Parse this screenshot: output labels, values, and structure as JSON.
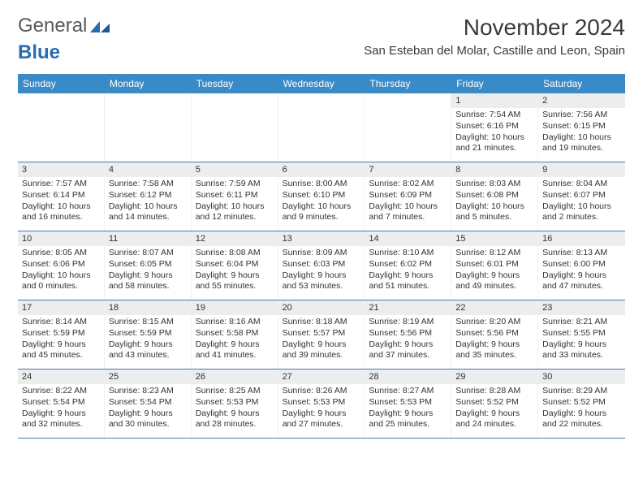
{
  "logo": {
    "text1": "General",
    "text2": "Blue"
  },
  "title": "November 2024",
  "location": "San Esteban del Molar, Castille and Leon, Spain",
  "colors": {
    "header_bg": "#3a8ac8",
    "daynum_bg": "#eceded",
    "rule": "#4a7aa8",
    "logo_gray": "#5a5a5a",
    "logo_blue": "#2b6cb0"
  },
  "weekdays": [
    "Sunday",
    "Monday",
    "Tuesday",
    "Wednesday",
    "Thursday",
    "Friday",
    "Saturday"
  ],
  "weeks": [
    [
      {
        "n": "",
        "sr": "",
        "ss": "",
        "dl": ""
      },
      {
        "n": "",
        "sr": "",
        "ss": "",
        "dl": ""
      },
      {
        "n": "",
        "sr": "",
        "ss": "",
        "dl": ""
      },
      {
        "n": "",
        "sr": "",
        "ss": "",
        "dl": ""
      },
      {
        "n": "",
        "sr": "",
        "ss": "",
        "dl": ""
      },
      {
        "n": "1",
        "sr": "Sunrise: 7:54 AM",
        "ss": "Sunset: 6:16 PM",
        "dl": "Daylight: 10 hours and 21 minutes."
      },
      {
        "n": "2",
        "sr": "Sunrise: 7:56 AM",
        "ss": "Sunset: 6:15 PM",
        "dl": "Daylight: 10 hours and 19 minutes."
      }
    ],
    [
      {
        "n": "3",
        "sr": "Sunrise: 7:57 AM",
        "ss": "Sunset: 6:14 PM",
        "dl": "Daylight: 10 hours and 16 minutes."
      },
      {
        "n": "4",
        "sr": "Sunrise: 7:58 AM",
        "ss": "Sunset: 6:12 PM",
        "dl": "Daylight: 10 hours and 14 minutes."
      },
      {
        "n": "5",
        "sr": "Sunrise: 7:59 AM",
        "ss": "Sunset: 6:11 PM",
        "dl": "Daylight: 10 hours and 12 minutes."
      },
      {
        "n": "6",
        "sr": "Sunrise: 8:00 AM",
        "ss": "Sunset: 6:10 PM",
        "dl": "Daylight: 10 hours and 9 minutes."
      },
      {
        "n": "7",
        "sr": "Sunrise: 8:02 AM",
        "ss": "Sunset: 6:09 PM",
        "dl": "Daylight: 10 hours and 7 minutes."
      },
      {
        "n": "8",
        "sr": "Sunrise: 8:03 AM",
        "ss": "Sunset: 6:08 PM",
        "dl": "Daylight: 10 hours and 5 minutes."
      },
      {
        "n": "9",
        "sr": "Sunrise: 8:04 AM",
        "ss": "Sunset: 6:07 PM",
        "dl": "Daylight: 10 hours and 2 minutes."
      }
    ],
    [
      {
        "n": "10",
        "sr": "Sunrise: 8:05 AM",
        "ss": "Sunset: 6:06 PM",
        "dl": "Daylight: 10 hours and 0 minutes."
      },
      {
        "n": "11",
        "sr": "Sunrise: 8:07 AM",
        "ss": "Sunset: 6:05 PM",
        "dl": "Daylight: 9 hours and 58 minutes."
      },
      {
        "n": "12",
        "sr": "Sunrise: 8:08 AM",
        "ss": "Sunset: 6:04 PM",
        "dl": "Daylight: 9 hours and 55 minutes."
      },
      {
        "n": "13",
        "sr": "Sunrise: 8:09 AM",
        "ss": "Sunset: 6:03 PM",
        "dl": "Daylight: 9 hours and 53 minutes."
      },
      {
        "n": "14",
        "sr": "Sunrise: 8:10 AM",
        "ss": "Sunset: 6:02 PM",
        "dl": "Daylight: 9 hours and 51 minutes."
      },
      {
        "n": "15",
        "sr": "Sunrise: 8:12 AM",
        "ss": "Sunset: 6:01 PM",
        "dl": "Daylight: 9 hours and 49 minutes."
      },
      {
        "n": "16",
        "sr": "Sunrise: 8:13 AM",
        "ss": "Sunset: 6:00 PM",
        "dl": "Daylight: 9 hours and 47 minutes."
      }
    ],
    [
      {
        "n": "17",
        "sr": "Sunrise: 8:14 AM",
        "ss": "Sunset: 5:59 PM",
        "dl": "Daylight: 9 hours and 45 minutes."
      },
      {
        "n": "18",
        "sr": "Sunrise: 8:15 AM",
        "ss": "Sunset: 5:59 PM",
        "dl": "Daylight: 9 hours and 43 minutes."
      },
      {
        "n": "19",
        "sr": "Sunrise: 8:16 AM",
        "ss": "Sunset: 5:58 PM",
        "dl": "Daylight: 9 hours and 41 minutes."
      },
      {
        "n": "20",
        "sr": "Sunrise: 8:18 AM",
        "ss": "Sunset: 5:57 PM",
        "dl": "Daylight: 9 hours and 39 minutes."
      },
      {
        "n": "21",
        "sr": "Sunrise: 8:19 AM",
        "ss": "Sunset: 5:56 PM",
        "dl": "Daylight: 9 hours and 37 minutes."
      },
      {
        "n": "22",
        "sr": "Sunrise: 8:20 AM",
        "ss": "Sunset: 5:56 PM",
        "dl": "Daylight: 9 hours and 35 minutes."
      },
      {
        "n": "23",
        "sr": "Sunrise: 8:21 AM",
        "ss": "Sunset: 5:55 PM",
        "dl": "Daylight: 9 hours and 33 minutes."
      }
    ],
    [
      {
        "n": "24",
        "sr": "Sunrise: 8:22 AM",
        "ss": "Sunset: 5:54 PM",
        "dl": "Daylight: 9 hours and 32 minutes."
      },
      {
        "n": "25",
        "sr": "Sunrise: 8:23 AM",
        "ss": "Sunset: 5:54 PM",
        "dl": "Daylight: 9 hours and 30 minutes."
      },
      {
        "n": "26",
        "sr": "Sunrise: 8:25 AM",
        "ss": "Sunset: 5:53 PM",
        "dl": "Daylight: 9 hours and 28 minutes."
      },
      {
        "n": "27",
        "sr": "Sunrise: 8:26 AM",
        "ss": "Sunset: 5:53 PM",
        "dl": "Daylight: 9 hours and 27 minutes."
      },
      {
        "n": "28",
        "sr": "Sunrise: 8:27 AM",
        "ss": "Sunset: 5:53 PM",
        "dl": "Daylight: 9 hours and 25 minutes."
      },
      {
        "n": "29",
        "sr": "Sunrise: 8:28 AM",
        "ss": "Sunset: 5:52 PM",
        "dl": "Daylight: 9 hours and 24 minutes."
      },
      {
        "n": "30",
        "sr": "Sunrise: 8:29 AM",
        "ss": "Sunset: 5:52 PM",
        "dl": "Daylight: 9 hours and 22 minutes."
      }
    ]
  ]
}
